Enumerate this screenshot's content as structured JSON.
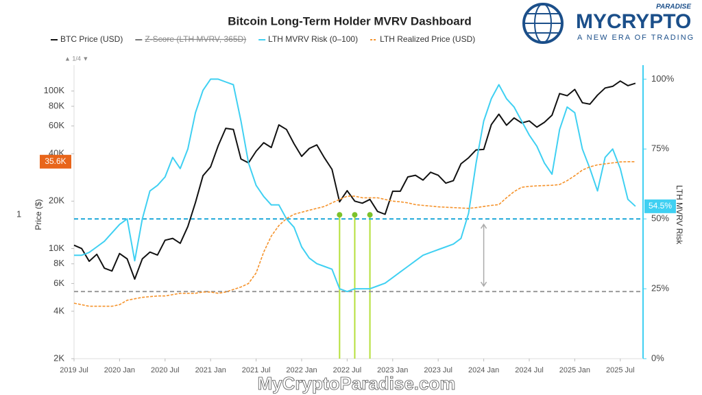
{
  "logo": {
    "name": "MYCRYPTO",
    "tag": "PARADISE",
    "slogan": "A NEW ERA OF TRADING"
  },
  "watermark": "MyCryptoParadise.com",
  "chart_data": {
    "type": "line",
    "title": "Bitcoin Long-Term Holder MVRV Dashboard",
    "pager": "▲ 1/4 ▼",
    "pane_label": "1",
    "ylabel": "Price ($)",
    "y2label": "LTH MVRV Risk",
    "log_scale": true,
    "x": [
      "2019-07",
      "2019-08",
      "2019-09",
      "2019-10",
      "2019-11",
      "2019-12",
      "2020-01",
      "2020-02",
      "2020-03",
      "2020-04",
      "2020-05",
      "2020-06",
      "2020-07",
      "2020-08",
      "2020-09",
      "2020-10",
      "2020-11",
      "2020-12",
      "2021-01",
      "2021-02",
      "2021-03",
      "2021-04",
      "2021-05",
      "2021-06",
      "2021-07",
      "2021-08",
      "2021-09",
      "2021-10",
      "2021-11",
      "2021-12",
      "2022-01",
      "2022-02",
      "2022-03",
      "2022-04",
      "2022-05",
      "2022-06",
      "2022-07",
      "2022-08",
      "2022-09",
      "2022-10",
      "2022-11",
      "2022-12",
      "2023-01",
      "2023-02",
      "2023-03",
      "2023-04",
      "2023-05",
      "2023-06",
      "2023-07",
      "2023-08",
      "2023-09",
      "2023-10",
      "2023-11",
      "2023-12",
      "2024-01",
      "2024-02",
      "2024-03",
      "2024-04",
      "2024-05",
      "2024-06",
      "2024-07",
      "2024-08",
      "2024-09",
      "2024-10",
      "2024-11",
      "2024-12",
      "2025-01",
      "2025-02",
      "2025-03",
      "2025-04",
      "2025-05",
      "2025-06",
      "2025-07",
      "2025-08",
      "2025-09"
    ],
    "xlim": [
      "2019-07",
      "2025-10"
    ],
    "xticks": [
      {
        "value": "2019-07",
        "label": "2019 Jul"
      },
      {
        "value": "2020-01",
        "label": "2020 Jan"
      },
      {
        "value": "2020-07",
        "label": "2020 Jul"
      },
      {
        "value": "2021-01",
        "label": "2021 Jan"
      },
      {
        "value": "2021-07",
        "label": "2021 Jul"
      },
      {
        "value": "2022-01",
        "label": "2022 Jan"
      },
      {
        "value": "2022-07",
        "label": "2022 Jul"
      },
      {
        "value": "2023-01",
        "label": "2023 Jan"
      },
      {
        "value": "2023-07",
        "label": "2023 Jul"
      },
      {
        "value": "2024-01",
        "label": "2024 Jan"
      },
      {
        "value": "2024-07",
        "label": "2024 Jul"
      },
      {
        "value": "2025-01",
        "label": "2025 Jan"
      },
      {
        "value": "2025-07",
        "label": "2025 Jul"
      }
    ],
    "ylim": [
      2000,
      146000
    ],
    "yticks": [
      {
        "value": 2000,
        "label": "2K"
      },
      {
        "value": 4000,
        "label": "4K"
      },
      {
        "value": 6000,
        "label": "6K"
      },
      {
        "value": 8000,
        "label": "8K"
      },
      {
        "value": 10000,
        "label": "10K"
      },
      {
        "value": 20000,
        "label": "20K"
      },
      {
        "value": 40000,
        "label": "40K"
      },
      {
        "value": 60000,
        "label": "60K"
      },
      {
        "value": 80000,
        "label": "80K"
      },
      {
        "value": 100000,
        "label": "100K"
      }
    ],
    "y2lim": [
      0,
      105
    ],
    "y2ticks": [
      {
        "value": 0,
        "label": "0%"
      },
      {
        "value": 25,
        "label": "25%"
      },
      {
        "value": 50,
        "label": "50%"
      },
      {
        "value": 75,
        "label": "75%"
      },
      {
        "value": 100,
        "label": "100%"
      }
    ],
    "series": [
      {
        "name": "BTC Price (USD)",
        "color": "#111111",
        "style": "solid",
        "values": [
          10500,
          10000,
          8300,
          9200,
          7500,
          7200,
          9300,
          8600,
          6400,
          8600,
          9500,
          9100,
          11300,
          11600,
          10800,
          13800,
          19600,
          29000,
          33000,
          45000,
          58000,
          57000,
          37000,
          35000,
          41500,
          47000,
          43800,
          61000,
          57000,
          46300,
          38500,
          43200,
          45500,
          37700,
          31800,
          19800,
          23300,
          20000,
          19400,
          20500,
          17200,
          16500,
          23100,
          23100,
          28500,
          29200,
          27200,
          30500,
          29200,
          26000,
          27000,
          34500,
          37700,
          42300,
          42600,
          61200,
          71300,
          60700,
          67500,
          62700,
          64600,
          59000,
          63300,
          70200,
          96400,
          93400,
          102400,
          84300,
          82500,
          94200,
          104600,
          107100,
          115700,
          108200,
          112000
        ]
      },
      {
        "name": "LTH MVRV Risk (0–100)",
        "color": "#3fd0f2",
        "style": "solid",
        "axis": "y2",
        "end_label": {
          "value": 54.5,
          "label": "54.5%"
        },
        "values": [
          37,
          37,
          38,
          40,
          42,
          45,
          48,
          50,
          35,
          50,
          60,
          62,
          65,
          72,
          68,
          75,
          88,
          96,
          100,
          100,
          99,
          98,
          85,
          70,
          62,
          58,
          55,
          55,
          50,
          47,
          40,
          36,
          34,
          33,
          32,
          25,
          24,
          25,
          25,
          25,
          26,
          27,
          29,
          31,
          33,
          35,
          37,
          38,
          39,
          40,
          41,
          43,
          52,
          70,
          85,
          93,
          98,
          93,
          90,
          85,
          80,
          76,
          70,
          66,
          82,
          90,
          88,
          75,
          68,
          60,
          72,
          75,
          68,
          57,
          54.5
        ]
      },
      {
        "name": "LTH Realized Price (USD)",
        "color": "#f5922a",
        "style": "dashed",
        "end_label": {
          "value": 35600,
          "label": "35.6K"
        },
        "values": [
          4500,
          4400,
          4300,
          4300,
          4300,
          4300,
          4400,
          4700,
          4800,
          4900,
          4950,
          5000,
          5000,
          5100,
          5200,
          5200,
          5200,
          5300,
          5300,
          5200,
          5300,
          5500,
          5700,
          6000,
          7000,
          9500,
          12000,
          14000,
          15500,
          16500,
          17000,
          17500,
          18000,
          18500,
          19500,
          20500,
          21500,
          21500,
          21000,
          21000,
          21000,
          20500,
          20000,
          19800,
          19500,
          19000,
          18800,
          18600,
          18400,
          18300,
          18200,
          18100,
          18000,
          18200,
          18500,
          18800,
          19000,
          21000,
          23000,
          24500,
          24800,
          25000,
          25100,
          25200,
          25500,
          27000,
          29000,
          31500,
          33000,
          34000,
          34500,
          35000,
          35500,
          35600,
          35600
        ]
      }
    ],
    "hidden_legend": [
      {
        "name": "Z-Score (LTH MVRV, 365D)",
        "color": "#777777"
      }
    ],
    "reference_lines": [
      {
        "value": 50,
        "color": "#1aa6d8",
        "axis": "y2"
      },
      {
        "value": 24,
        "color": "#999999",
        "axis": "y2"
      }
    ],
    "signals": {
      "color": "#b5e03a",
      "x": [
        "2022-06",
        "2022-08",
        "2022-10"
      ]
    }
  }
}
